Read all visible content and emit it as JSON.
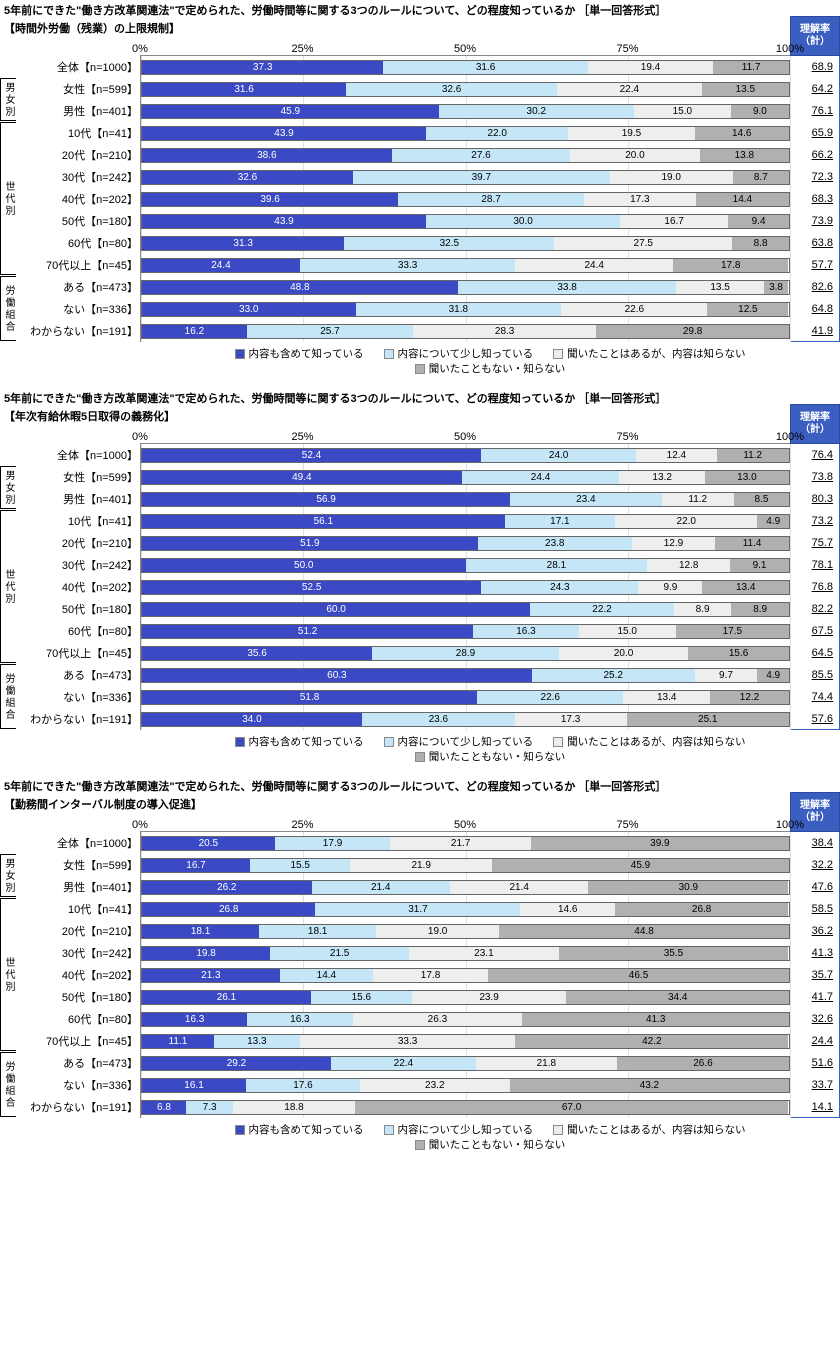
{
  "common": {
    "question_prefix": "5年前にできた\"働き方改革関連法\"で定められた、労働時間等に関する3つのルールについて、どの程度知っているか ［単一回答形式］",
    "rate_header": "理解率\n（計）",
    "axis_ticks": [
      "0%",
      "25%",
      "50%",
      "75%",
      "100%"
    ],
    "axis_positions": [
      0,
      25,
      50,
      75,
      100
    ],
    "colors": {
      "seg1": "#3b49c4",
      "seg1_text": "#ffffff",
      "seg2": "#c5e6f7",
      "seg2_text": "#000000",
      "seg3": "#eeeeee",
      "seg3_text": "#000000",
      "seg4": "#b0b0b0",
      "seg4_text": "#000000",
      "header_bg": "#3b5fc0"
    },
    "legend": [
      {
        "label": "内容も含めて知っている",
        "color": "#3b49c4"
      },
      {
        "label": "内容について少し知っている",
        "color": "#c5e6f7"
      },
      {
        "label": "聞いたことはあるが、内容は知らない",
        "color": "#eeeeee"
      },
      {
        "label": "聞いたこともない・知らない",
        "color": "#b0b0b0"
      }
    ],
    "groups": [
      {
        "label": "",
        "rows": 1
      },
      {
        "label": "男女別",
        "rows": 2
      },
      {
        "label": "世代別",
        "rows": 7
      },
      {
        "label": "労働組合",
        "rows": 3
      }
    ],
    "row_labels": [
      "全体【n=1000】",
      "女性【n=599】",
      "男性【n=401】",
      "10代【n=41】",
      "20代【n=210】",
      "30代【n=242】",
      "40代【n=202】",
      "50代【n=180】",
      "60代【n=80】",
      "70代以上【n=45】",
      "ある【n=473】",
      "ない【n=336】",
      "わからない【n=191】"
    ]
  },
  "charts": [
    {
      "subtitle": "【時間外労働（残業）の上限規制】",
      "rows": [
        {
          "v": [
            37.3,
            31.6,
            19.4,
            11.7
          ],
          "rate": "68.9"
        },
        {
          "v": [
            31.6,
            32.6,
            22.4,
            13.5
          ],
          "rate": "64.2"
        },
        {
          "v": [
            45.9,
            30.2,
            15.0,
            9.0
          ],
          "rate": "76.1"
        },
        {
          "v": [
            43.9,
            22.0,
            19.5,
            14.6
          ],
          "rate": "65.9"
        },
        {
          "v": [
            38.6,
            27.6,
            20.0,
            13.8
          ],
          "rate": "66.2"
        },
        {
          "v": [
            32.6,
            39.7,
            19.0,
            8.7
          ],
          "rate": "72.3"
        },
        {
          "v": [
            39.6,
            28.7,
            17.3,
            14.4
          ],
          "rate": "68.3"
        },
        {
          "v": [
            43.9,
            30.0,
            16.7,
            9.4
          ],
          "rate": "73.9"
        },
        {
          "v": [
            31.3,
            32.5,
            27.5,
            8.8
          ],
          "rate": "63.8"
        },
        {
          "v": [
            24.4,
            33.3,
            24.4,
            17.8
          ],
          "rate": "57.7"
        },
        {
          "v": [
            48.8,
            33.8,
            13.5,
            3.8
          ],
          "rate": "82.6"
        },
        {
          "v": [
            33.0,
            31.8,
            22.6,
            12.5
          ],
          "rate": "64.8"
        },
        {
          "v": [
            16.2,
            25.7,
            28.3,
            29.8
          ],
          "rate": "41.9"
        }
      ]
    },
    {
      "subtitle": "【年次有給休暇5日取得の義務化】",
      "rows": [
        {
          "v": [
            52.4,
            24.0,
            12.4,
            11.2
          ],
          "rate": "76.4"
        },
        {
          "v": [
            49.4,
            24.4,
            13.2,
            13.0
          ],
          "rate": "73.8"
        },
        {
          "v": [
            56.9,
            23.4,
            11.2,
            8.5
          ],
          "rate": "80.3"
        },
        {
          "v": [
            56.1,
            17.1,
            22.0,
            4.9
          ],
          "rate": "73.2"
        },
        {
          "v": [
            51.9,
            23.8,
            12.9,
            11.4
          ],
          "rate": "75.7"
        },
        {
          "v": [
            50.0,
            28.1,
            12.8,
            9.1
          ],
          "rate": "78.1"
        },
        {
          "v": [
            52.5,
            24.3,
            9.9,
            13.4
          ],
          "rate": "76.8"
        },
        {
          "v": [
            60.0,
            22.2,
            8.9,
            8.9
          ],
          "rate": "82.2"
        },
        {
          "v": [
            51.2,
            16.3,
            15.0,
            17.5
          ],
          "rate": "67.5"
        },
        {
          "v": [
            35.6,
            28.9,
            20.0,
            15.6
          ],
          "rate": "64.5"
        },
        {
          "v": [
            60.3,
            25.2,
            9.7,
            4.9
          ],
          "rate": "85.5"
        },
        {
          "v": [
            51.8,
            22.6,
            13.4,
            12.2
          ],
          "rate": "74.4"
        },
        {
          "v": [
            34.0,
            23.6,
            17.3,
            25.1
          ],
          "rate": "57.6"
        }
      ]
    },
    {
      "subtitle": "【勤務間インターバル制度の導入促進】",
      "rows": [
        {
          "v": [
            20.5,
            17.9,
            21.7,
            39.9
          ],
          "rate": "38.4"
        },
        {
          "v": [
            16.7,
            15.5,
            21.9,
            45.9
          ],
          "rate": "32.2"
        },
        {
          "v": [
            26.2,
            21.4,
            21.4,
            30.9
          ],
          "rate": "47.6"
        },
        {
          "v": [
            26.8,
            31.7,
            14.6,
            26.8
          ],
          "rate": "58.5"
        },
        {
          "v": [
            18.1,
            18.1,
            19.0,
            44.8
          ],
          "rate": "36.2"
        },
        {
          "v": [
            19.8,
            21.5,
            23.1,
            35.5
          ],
          "rate": "41.3"
        },
        {
          "v": [
            21.3,
            14.4,
            17.8,
            46.5
          ],
          "rate": "35.7"
        },
        {
          "v": [
            26.1,
            15.6,
            23.9,
            34.4
          ],
          "rate": "41.7"
        },
        {
          "v": [
            16.3,
            16.3,
            26.3,
            41.3
          ],
          "rate": "32.6"
        },
        {
          "v": [
            11.1,
            13.3,
            33.3,
            42.2
          ],
          "rate": "24.4"
        },
        {
          "v": [
            29.2,
            22.4,
            21.8,
            26.6
          ],
          "rate": "51.6"
        },
        {
          "v": [
            16.1,
            17.6,
            23.2,
            43.2
          ],
          "rate": "33.7"
        },
        {
          "v": [
            6.8,
            7.3,
            18.8,
            67.0
          ],
          "rate": "14.1"
        }
      ]
    }
  ]
}
